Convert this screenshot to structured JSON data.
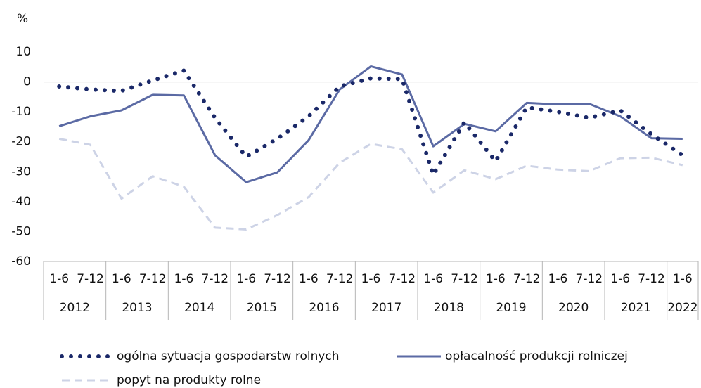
{
  "chart_data": {
    "type": "line",
    "y_unit": "%",
    "categories": [
      "1-6",
      "7-12",
      "1-6",
      "7-12",
      "1-6",
      "7-12",
      "1-6",
      "7-12",
      "1-6",
      "7-12",
      "1-6",
      "7-12",
      "1-6",
      "7-12",
      "1-6",
      "7-12",
      "1-6",
      "7-12",
      "1-6",
      "7-12",
      "1-6"
    ],
    "years": [
      "2012",
      "2013",
      "2014",
      "2015",
      "2016",
      "2017",
      "2018",
      "2019",
      "2020",
      "2021",
      "2022"
    ],
    "series": [
      {
        "name": "ogólna sytuacja gospodarstw rolnych",
        "color": "#1a2868",
        "style": "dotted",
        "values": [
          -1.5,
          -2.5,
          -3,
          0.5,
          3.8,
          -12,
          -25,
          -19,
          -11.5,
          -1.5,
          1.2,
          1,
          -31,
          -13.5,
          -26.5,
          -8.5,
          -10,
          -12,
          -9.5,
          -17.5,
          -24.5
        ]
      },
      {
        "name": "opłacalność produkcji rolniczej",
        "color": "#5b6aa4",
        "style": "solid",
        "values": [
          -14.8,
          -11.5,
          -9.5,
          -4.3,
          -4.5,
          -24.5,
          -33.5,
          -30.2,
          -19.5,
          -2.5,
          5.2,
          2.5,
          -21.5,
          -14,
          -16.5,
          -7,
          -7.5,
          -7.3,
          -11.5,
          -18.8,
          -19
        ]
      },
      {
        "name": "popyt na produkty rolne",
        "color": "#cdd3e6",
        "style": "dashed",
        "values": [
          -19,
          -21,
          -39,
          -31.5,
          -35,
          -48.7,
          -49.3,
          -44.5,
          -38.5,
          -27,
          -20.7,
          -22.5,
          -37,
          -29.5,
          -32.5,
          -28,
          -29.3,
          -29.8,
          -25.5,
          -25.3,
          -27.8
        ]
      }
    ],
    "ylim": [
      -60,
      10
    ],
    "yticks": [
      10,
      0,
      -10,
      -20,
      -30,
      -40,
      -50,
      -60
    ],
    "grid": false
  }
}
